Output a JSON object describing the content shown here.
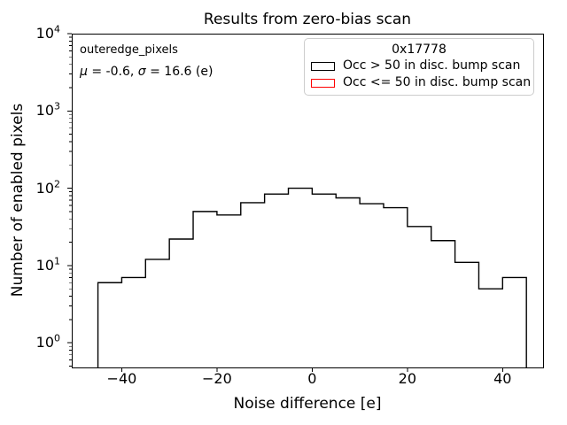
{
  "figure": {
    "title": "Results from zero-bias scan",
    "xlabel": "Noise difference [e]",
    "ylabel": "Number of enabled pixels"
  },
  "annotations": {
    "dataset_label": "outeredge_pixels",
    "stats": {
      "mu_symbol": "μ",
      "mu_rest": " = -0.6, ",
      "sigma_symbol": "σ",
      "sigma_rest": " = 16.6 (e)"
    }
  },
  "legend": {
    "title": "0x17778",
    "entries": [
      {
        "label": "Occ > 50 in disc. bump scan",
        "color": "#000000"
      },
      {
        "label": "Occ <= 50 in disc. bump scan",
        "color": "#ff0000"
      }
    ]
  },
  "chart_data": {
    "type": "bar",
    "subtype": "step-histogram",
    "title": "Results from zero-bias scan",
    "xlabel": "Noise difference [e]",
    "ylabel": "Number of enabled pixels",
    "yscale": "log",
    "grid": false,
    "legend_position": "upper right",
    "bin_edges": [
      -45,
      -40,
      -35,
      -30,
      -25,
      -20,
      -15,
      -10,
      -5,
      0,
      5,
      10,
      15,
      20,
      25,
      30,
      35,
      40,
      45
    ],
    "counts": [
      6,
      7,
      12,
      22,
      50,
      45,
      65,
      84,
      100,
      84,
      75,
      63,
      56,
      32,
      21,
      11,
      5,
      7
    ],
    "series_name": "Occ > 50 in disc. bump scan",
    "line_color": "#000000",
    "xlim": [
      -50.5,
      48.5
    ],
    "ylim": [
      0.48,
      10000
    ],
    "xticks": [
      -40,
      -20,
      0,
      20,
      40
    ],
    "ytick_exponents": [
      0,
      1,
      2,
      3,
      4
    ]
  }
}
